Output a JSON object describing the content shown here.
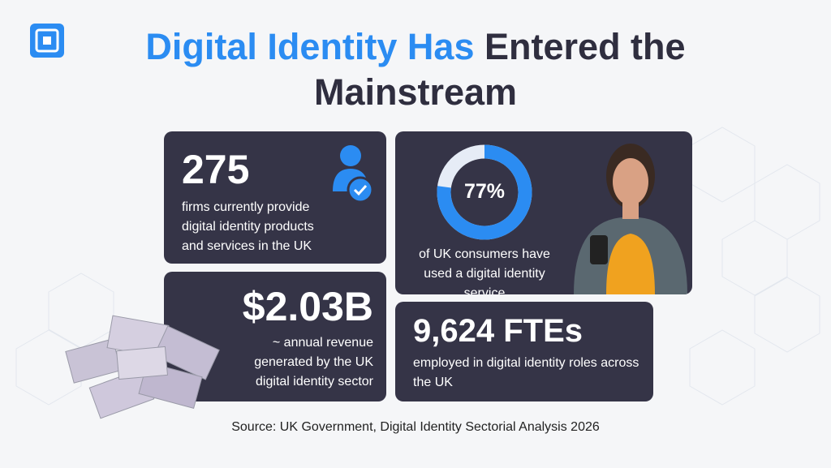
{
  "title": {
    "highlight": "Digital Identity Has",
    "rest": "Entered the Mainstream"
  },
  "stats": [
    {
      "value": "275",
      "text": "firms currently provide digital identity products and services in the UK"
    },
    {
      "value": 77,
      "value_label": "77%",
      "text": "of UK consumers have used a digital identity service"
    },
    {
      "value": "$2.03B",
      "text": "~ annual revenue generated by the UK digital identity sector"
    },
    {
      "value": "9,624 FTEs",
      "text": "employed in digital identity roles across the UK"
    }
  ],
  "source": "Source: UK Government, Digital Identity Sectorial Analysis 2026"
}
